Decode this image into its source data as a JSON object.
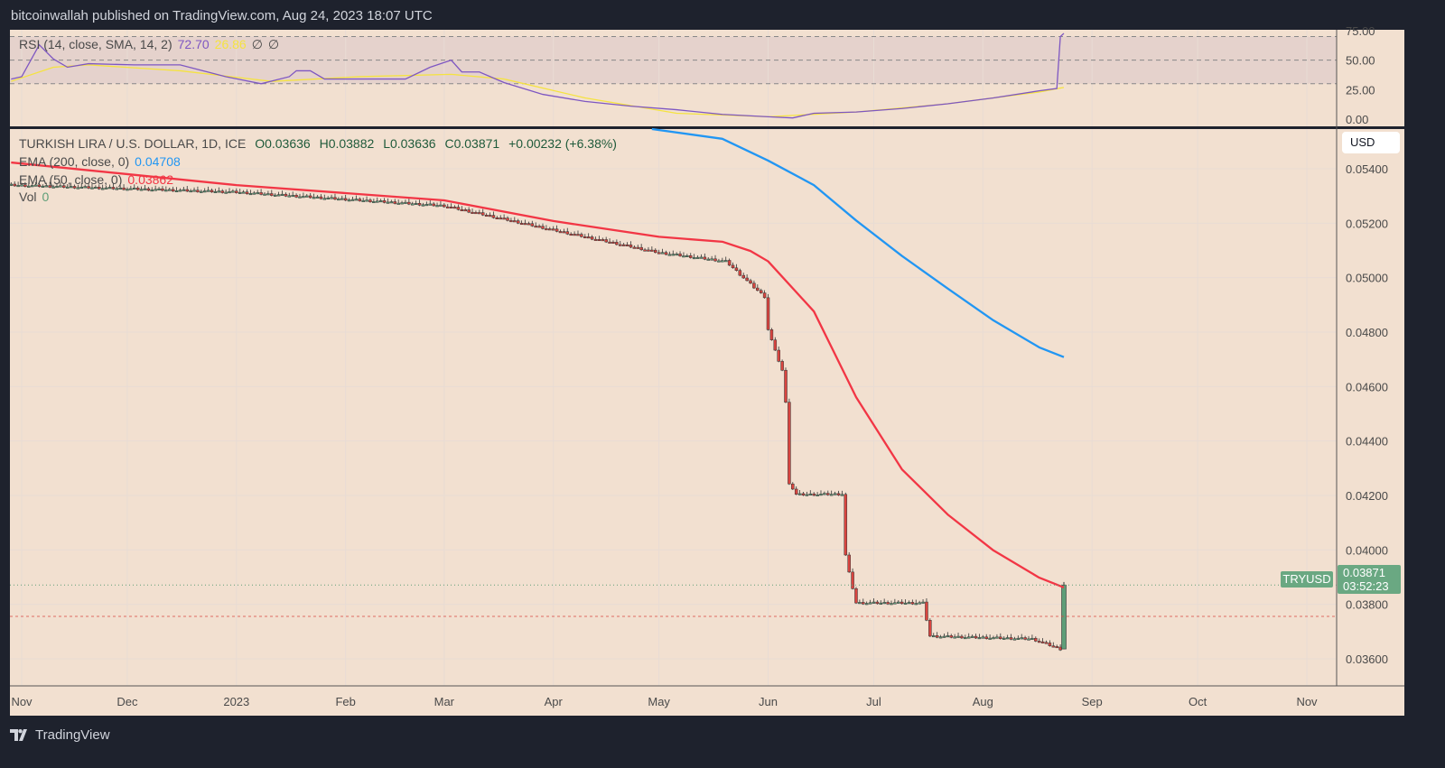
{
  "header": {
    "published": "bitcoinwallah published on TradingView.com, Aug 24, 2023 18:07 UTC"
  },
  "footer": {
    "brand": "TradingView",
    "logo_icon": "tradingview-logo-icon"
  },
  "colors": {
    "background": "#f2e0d0",
    "frame": "#1e222d",
    "up": "#5e9e78",
    "down": "#d9443f",
    "ema200": "#2196f3",
    "ema50": "#f23645",
    "rsi": "#7e57c2",
    "rsi_sma": "#f5e340",
    "rsi_band": "#e5d2cc"
  },
  "rsi_legend": {
    "label": "RSI (14, close, SMA, 14, 2)",
    "rsi_value": "72.70",
    "sma_value": "26.86",
    "extra1": "∅",
    "extra2": "∅"
  },
  "price_legend": {
    "symbol": "TURKISH LIRA / U.S. DOLLAR, 1D, ICE",
    "open": "O0.03636",
    "high": "H0.03882",
    "low": "L0.03636",
    "close": "C0.03871",
    "change": "+0.00232 (+6.38%)",
    "ema200_label": "EMA (200, close, 0)",
    "ema200_value": "0.04708",
    "ema50_label": "EMA (50, close, 0)",
    "ema50_value": "0.03862",
    "vol_label": "Vol",
    "vol_value": "0"
  },
  "currency_button": "USD",
  "last_price_tag": {
    "symbol": "TRYUSD",
    "price": "0.03871",
    "countdown": "03:52:23"
  },
  "chart_data": [
    {
      "type": "line",
      "title": "RSI (14, close, SMA, 14, 2)",
      "ylim": [
        0,
        75
      ],
      "yticks": [
        "75.00",
        "50.00",
        "25.00",
        "0.00"
      ],
      "band": [
        30,
        70
      ],
      "series": [
        {
          "name": "RSI",
          "points": [
            [
              "2022-10-29",
              34
            ],
            [
              "2022-11-01",
              36
            ],
            [
              "2022-11-06",
              63
            ],
            [
              "2022-11-10",
              51
            ],
            [
              "2022-11-14",
              44
            ],
            [
              "2022-11-20",
              47
            ],
            [
              "2022-12-03",
              46
            ],
            [
              "2022-12-16",
              46
            ],
            [
              "2022-12-29",
              36
            ],
            [
              "2023-01-08",
              30
            ],
            [
              "2023-01-16",
              36
            ],
            [
              "2023-01-18",
              41
            ],
            [
              "2023-01-22",
              41
            ],
            [
              "2023-01-26",
              34
            ],
            [
              "2023-02-05",
              34
            ],
            [
              "2023-02-18",
              34
            ],
            [
              "2023-02-25",
              44
            ],
            [
              "2023-03-03",
              50
            ],
            [
              "2023-03-06",
              40
            ],
            [
              "2023-03-11",
              40
            ],
            [
              "2023-03-18",
              31
            ],
            [
              "2023-03-29",
              21
            ],
            [
              "2023-04-10",
              15
            ],
            [
              "2023-04-23",
              11
            ],
            [
              "2023-05-06",
              8
            ],
            [
              "2023-05-19",
              4
            ],
            [
              "2023-06-01",
              2
            ],
            [
              "2023-06-08",
              1
            ],
            [
              "2023-06-14",
              5
            ],
            [
              "2023-06-26",
              6
            ],
            [
              "2023-07-09",
              9
            ],
            [
              "2023-07-22",
              13
            ],
            [
              "2023-08-04",
              18
            ],
            [
              "2023-08-17",
              24
            ],
            [
              "2023-08-22",
              26
            ],
            [
              "2023-08-23",
              70
            ],
            [
              "2023-08-24",
              72.7
            ]
          ]
        },
        {
          "name": "SMA",
          "points": [
            [
              "2022-10-29",
              32
            ],
            [
              "2022-11-10",
              44
            ],
            [
              "2022-11-20",
              46
            ],
            [
              "2022-12-16",
              41
            ],
            [
              "2023-01-11",
              32
            ],
            [
              "2023-02-05",
              36
            ],
            [
              "2023-03-03",
              38
            ],
            [
              "2023-03-18",
              34
            ],
            [
              "2023-04-10",
              18
            ],
            [
              "2023-05-06",
              5
            ],
            [
              "2023-06-01",
              2
            ],
            [
              "2023-06-26",
              6
            ],
            [
              "2023-07-22",
              13
            ],
            [
              "2023-08-17",
              23
            ],
            [
              "2023-08-24",
              26.86
            ]
          ]
        }
      ]
    },
    {
      "type": "candlestick",
      "title": "TURKISH LIRA / U.S. DOLLAR, 1D, ICE",
      "ylim": [
        0.0353,
        0.0558
      ],
      "yticks": [
        "0.05400",
        "0.05200",
        "0.05000",
        "0.04800",
        "0.04600",
        "0.04400",
        "0.04200",
        "0.04000",
        "0.03800",
        "0.03600"
      ],
      "xticks": [
        [
          "2022-11-01",
          "Nov"
        ],
        [
          "2022-12-01",
          "Dec"
        ],
        [
          "2023-01-01",
          "2023"
        ],
        [
          "2023-02-01",
          "Feb"
        ],
        [
          "2023-03-01",
          "Mar"
        ],
        [
          "2023-04-01",
          "Apr"
        ],
        [
          "2023-05-01",
          "May"
        ],
        [
          "2023-06-01",
          "Jun"
        ],
        [
          "2023-07-01",
          "Jul"
        ],
        [
          "2023-08-01",
          "Aug"
        ],
        [
          "2023-09-01",
          "Sep"
        ],
        [
          "2023-10-01",
          "Oct"
        ],
        [
          "2023-11-01",
          "Nov"
        ]
      ],
      "close_path": [
        [
          "2022-10-29",
          0.0534
        ],
        [
          "2023-01-01",
          0.05314
        ],
        [
          "2023-03-01",
          0.05264
        ],
        [
          "2023-04-01",
          0.05175
        ],
        [
          "2023-05-01",
          0.05092
        ],
        [
          "2023-05-20",
          0.0506
        ],
        [
          "2023-05-27",
          0.04976
        ],
        [
          "2023-05-31",
          0.0493
        ],
        [
          "2023-06-01",
          0.0481
        ],
        [
          "2023-06-03",
          0.0473
        ],
        [
          "2023-06-05",
          0.0466
        ],
        [
          "2023-06-06",
          0.0454
        ],
        [
          "2023-06-07",
          0.04246
        ],
        [
          "2023-06-09",
          0.04203
        ],
        [
          "2023-06-22",
          0.04205
        ],
        [
          "2023-06-23",
          0.0398
        ],
        [
          "2023-06-24",
          0.03915
        ],
        [
          "2023-06-26",
          0.03805
        ],
        [
          "2023-07-15",
          0.03805
        ],
        [
          "2023-07-17",
          0.03683
        ],
        [
          "2023-08-15",
          0.03673
        ],
        [
          "2023-08-23",
          0.03636
        ]
      ],
      "last_candle": {
        "date": "2023-08-24",
        "open": 0.03636,
        "high": 0.03882,
        "low": 0.03636,
        "close": 0.03871
      },
      "series": [
        {
          "name": "EMA (200, close, 0)",
          "points": [
            [
              "2023-04-29",
              0.0556
            ],
            [
              "2023-05-19",
              0.0551
            ],
            [
              "2023-06-01",
              0.0543
            ],
            [
              "2023-06-14",
              0.0534
            ],
            [
              "2023-06-26",
              0.0521
            ],
            [
              "2023-07-09",
              0.0508
            ],
            [
              "2023-07-22",
              0.0496
            ],
            [
              "2023-08-04",
              0.04843
            ],
            [
              "2023-08-17",
              0.04744
            ],
            [
              "2023-08-24",
              0.04708
            ]
          ]
        },
        {
          "name": "EMA (50, close, 0)",
          "points": [
            [
              "2022-10-29",
              0.05423
            ],
            [
              "2023-01-01",
              0.0534
            ],
            [
              "2023-03-01",
              0.05284
            ],
            [
              "2023-04-01",
              0.05208
            ],
            [
              "2023-05-01",
              0.0515
            ],
            [
              "2023-05-19",
              0.05132
            ],
            [
              "2023-05-27",
              0.05098
            ],
            [
              "2023-06-01",
              0.0506
            ],
            [
              "2023-06-14",
              0.04876
            ],
            [
              "2023-06-26",
              0.04561
            ],
            [
              "2023-07-09",
              0.04296
            ],
            [
              "2023-07-22",
              0.0413
            ],
            [
              "2023-08-04",
              0.03998
            ],
            [
              "2023-08-17",
              0.03898
            ],
            [
              "2023-08-24",
              0.03862
            ]
          ]
        }
      ]
    }
  ]
}
